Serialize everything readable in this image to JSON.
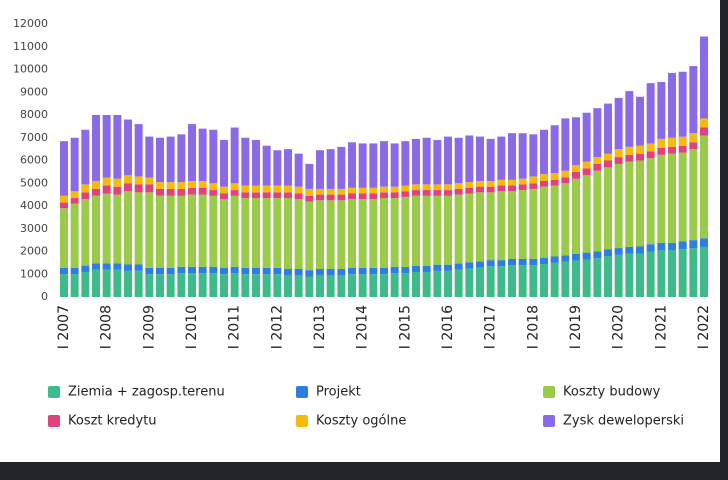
{
  "chart_data": {
    "type": "stacked-bar",
    "categories": [
      "I 2007",
      null,
      null,
      null,
      "I 2008",
      null,
      null,
      null,
      "I 2009",
      null,
      null,
      null,
      "I 2010",
      null,
      null,
      null,
      "I 2011",
      null,
      null,
      null,
      "I 2012",
      null,
      null,
      null,
      "I 2013",
      null,
      null,
      null,
      "I 2014",
      null,
      null,
      null,
      "I 2015",
      null,
      null,
      null,
      "I 2016",
      null,
      null,
      null,
      "I 2017",
      null,
      null,
      null,
      "I 2018",
      null,
      null,
      null,
      "I 2019",
      null,
      null,
      null,
      "I 2020",
      null,
      null,
      null,
      "I 2021",
      null,
      null,
      null,
      "I 2022"
    ],
    "series": [
      {
        "name": "Ziemia + zagosp.terenu",
        "color": "#3dbb8a",
        "values": [
          1000,
          1000,
          1100,
          1200,
          1200,
          1200,
          1150,
          1150,
          1000,
          1000,
          1000,
          1050,
          1050,
          1050,
          1050,
          1000,
          1050,
          1000,
          1000,
          1000,
          1000,
          950,
          950,
          900,
          950,
          950,
          950,
          1000,
          1000,
          1000,
          1000,
          1050,
          1050,
          1100,
          1100,
          1150,
          1150,
          1200,
          1250,
          1300,
          1350,
          1350,
          1400,
          1400,
          1400,
          1450,
          1500,
          1550,
          1600,
          1650,
          1700,
          1800,
          1850,
          1900,
          1900,
          2000,
          2050,
          2050,
          2100,
          2150,
          2200
        ]
      },
      {
        "name": "Projekt",
        "color": "#2f7de1",
        "values": [
          280,
          280,
          280,
          280,
          280,
          280,
          280,
          280,
          280,
          280,
          280,
          280,
          280,
          280,
          280,
          280,
          280,
          280,
          280,
          280,
          280,
          280,
          280,
          280,
          280,
          280,
          280,
          280,
          280,
          280,
          280,
          280,
          270,
          270,
          270,
          270,
          270,
          270,
          270,
          270,
          270,
          270,
          270,
          270,
          280,
          280,
          280,
          280,
          300,
          300,
          300,
          300,
          300,
          300,
          320,
          320,
          330,
          330,
          350,
          350,
          380
        ]
      },
      {
        "name": "Koszty budowy",
        "color": "#9bc94a",
        "values": [
          2620,
          2820,
          2920,
          2970,
          3070,
          3020,
          3220,
          3170,
          3320,
          3170,
          3170,
          3120,
          3170,
          3170,
          3120,
          3020,
          3120,
          3070,
          3070,
          3070,
          3070,
          3120,
          3070,
          3020,
          3020,
          3020,
          3020,
          3020,
          3020,
          3020,
          3070,
          3020,
          3080,
          3080,
          3080,
          3030,
          3030,
          3030,
          3030,
          3030,
          2980,
          3030,
          2980,
          3030,
          3070,
          3120,
          3120,
          3170,
          3300,
          3400,
          3550,
          3600,
          3700,
          3750,
          3780,
          3780,
          3870,
          3920,
          3900,
          4000,
          4520
        ]
      },
      {
        "name": "Koszt kredytu",
        "color": "#e0427e",
        "values": [
          250,
          250,
          300,
          300,
          350,
          350,
          350,
          350,
          350,
          300,
          300,
          300,
          300,
          300,
          250,
          250,
          250,
          250,
          250,
          250,
          250,
          250,
          250,
          250,
          250,
          250,
          250,
          250,
          250,
          250,
          250,
          250,
          250,
          250,
          250,
          250,
          250,
          250,
          250,
          250,
          250,
          250,
          250,
          250,
          250,
          250,
          250,
          250,
          300,
          300,
          300,
          300,
          300,
          300,
          300,
          300,
          300,
          300,
          300,
          300,
          350
        ]
      },
      {
        "name": "Koszty ogólne",
        "color": "#f5b90f",
        "values": [
          300,
          300,
          350,
          350,
          350,
          350,
          350,
          350,
          300,
          300,
          300,
          300,
          300,
          300,
          300,
          300,
          300,
          300,
          300,
          300,
          300,
          300,
          300,
          300,
          250,
          250,
          250,
          250,
          250,
          250,
          250,
          250,
          250,
          250,
          250,
          250,
          250,
          250,
          250,
          250,
          250,
          250,
          250,
          250,
          300,
          300,
          300,
          300,
          300,
          300,
          300,
          300,
          350,
          350,
          350,
          350,
          400,
          400,
          400,
          400,
          400
        ]
      },
      {
        "name": "Zysk deweloperski",
        "color": "#8b6ae6",
        "values": [
          2400,
          2350,
          2400,
          2900,
          2750,
          2800,
          2450,
          2300,
          1800,
          1950,
          2000,
          2100,
          2500,
          2300,
          2350,
          2050,
          2450,
          2100,
          2000,
          1750,
          1550,
          1600,
          1450,
          1100,
          1700,
          1750,
          1850,
          2000,
          1950,
          1950,
          2000,
          1900,
          1950,
          2000,
          2050,
          1950,
          2100,
          2000,
          2050,
          1950,
          1850,
          1900,
          2050,
          2000,
          1850,
          1950,
          2100,
          2300,
          2100,
          2150,
          2150,
          2200,
          2250,
          2450,
          2150,
          2650,
          2500,
          2850,
          2850,
          2950,
          3600
        ]
      }
    ],
    "ylim": [
      0,
      12000
    ],
    "yticks": [
      0,
      1000,
      2000,
      3000,
      4000,
      5000,
      6000,
      7000,
      8000,
      9000,
      10000,
      11000,
      12000
    ]
  }
}
